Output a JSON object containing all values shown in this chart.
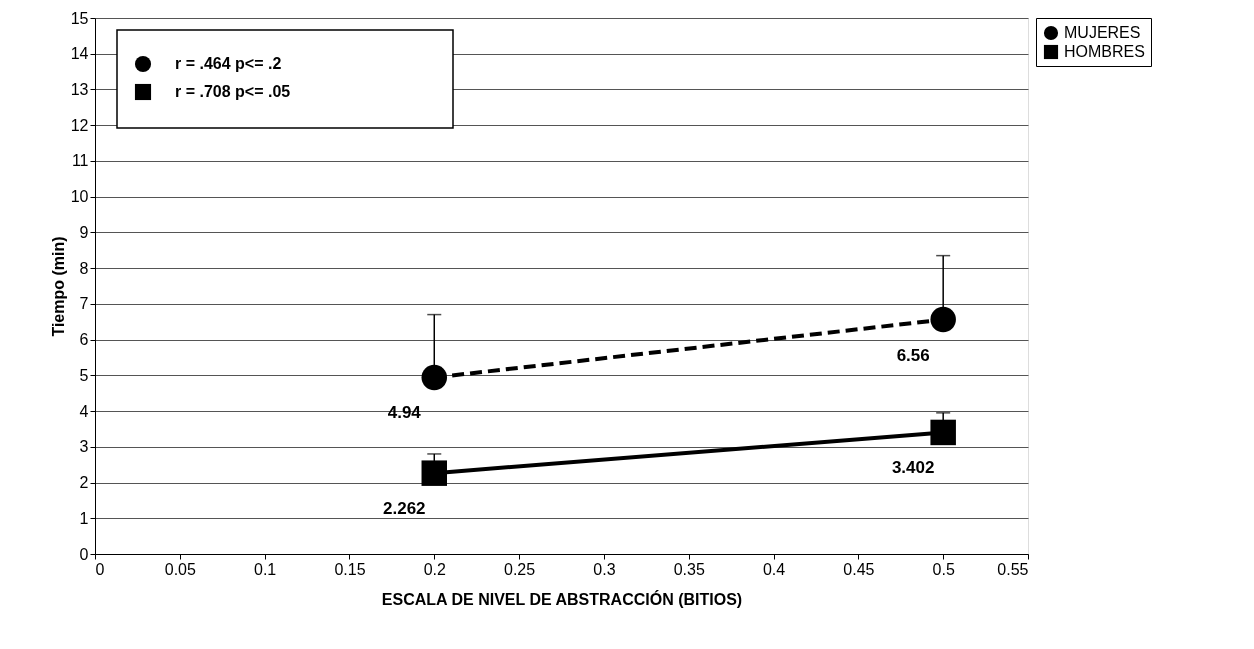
{
  "chart_data": {
    "type": "line",
    "xlabel": "ESCALA DE NIVEL DE ABSTRACCIÓN (BITIOS)",
    "ylabel": "Tiempo (min)",
    "x": [
      0.2,
      0.5
    ],
    "series": [
      {
        "name": "MUJERES",
        "color": "#000000",
        "values": [
          4.94,
          6.56
        ],
        "errors": [
          [
            4.94,
            6.7
          ],
          [
            6.56,
            8.35
          ]
        ],
        "marker": "circle",
        "line_style": "dashed"
      },
      {
        "name": "HOMBRES",
        "color": "#000000",
        "values": [
          2.262,
          3.402
        ],
        "errors": [
          [
            2.262,
            2.8
          ],
          [
            3.402,
            3.95
          ]
        ],
        "marker": "square",
        "line_style": "solid"
      }
    ],
    "data_labels": true,
    "xlim": [
      0,
      0.55
    ],
    "xticks": [
      0,
      0.05,
      0.1,
      0.15,
      0.2,
      0.25,
      0.3,
      0.35,
      0.4,
      0.45,
      0.5,
      0.55
    ],
    "ylim": [
      0,
      15
    ],
    "yticks": [
      0,
      1,
      2,
      3,
      4,
      5,
      6,
      7,
      8,
      9,
      10,
      11,
      12,
      13,
      14,
      15
    ],
    "grid": "y",
    "legend": "top right",
    "annotations": [
      "r = .464 p<= .2",
      "r = .708 p<= .05"
    ]
  }
}
